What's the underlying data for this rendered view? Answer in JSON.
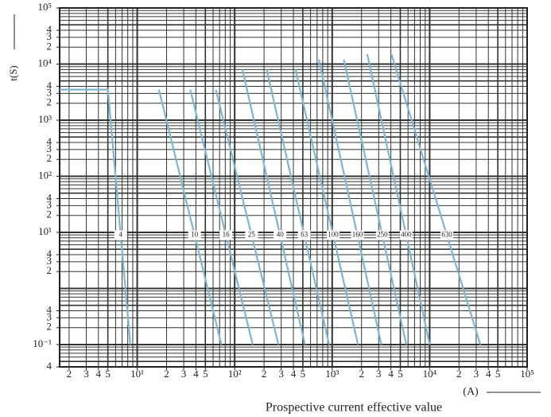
{
  "chart_data": {
    "type": "line",
    "y_label": "t(S)",
    "x_label": "(A)",
    "subtitle": "Prospective current effective value",
    "x_scale": "log",
    "y_scale": "log",
    "grid": true,
    "xlim": [
      1.6,
      100000
    ],
    "ylim": [
      0.04,
      100000
    ],
    "xticks": [
      2,
      3,
      4,
      5,
      {
        "value": 10,
        "label": "10¹"
      },
      {
        "value": 20,
        "label": "2"
      },
      {
        "value": 30,
        "label": "3"
      },
      {
        "value": 40,
        "label": "4"
      },
      {
        "value": 50,
        "label": "5"
      },
      {
        "value": 100,
        "label": "10²"
      },
      {
        "value": 200,
        "label": "2"
      },
      {
        "value": 300,
        "label": "3"
      },
      {
        "value": 400,
        "label": "4"
      },
      {
        "value": 500,
        "label": "5"
      },
      {
        "value": 1000,
        "label": "10³"
      },
      {
        "value": 2000,
        "label": "2"
      },
      {
        "value": 3000,
        "label": "3"
      },
      {
        "value": 4000,
        "label": "4"
      },
      {
        "value": 5000,
        "label": "5"
      },
      {
        "value": 10000,
        "label": "10⁴"
      },
      {
        "value": 20000,
        "label": "2"
      },
      {
        "value": 30000,
        "label": "3"
      },
      {
        "value": 40000,
        "label": "4"
      },
      {
        "value": 50000,
        "label": "5"
      },
      {
        "value": 100000,
        "label": "10⁵"
      }
    ],
    "yticks": [
      {
        "value": 100000,
        "label": "10⁵"
      },
      {
        "value": 40000,
        "label": "4"
      },
      {
        "value": 30000,
        "label": "3"
      },
      {
        "value": 20000,
        "label": "2"
      },
      {
        "value": 10000,
        "label": "10⁴"
      },
      {
        "value": 4000,
        "label": "4"
      },
      {
        "value": 3000,
        "label": "3"
      },
      {
        "value": 2000,
        "label": "2"
      },
      {
        "value": 1000,
        "label": "10³"
      },
      {
        "value": 400,
        "label": "4"
      },
      {
        "value": 300,
        "label": "3"
      },
      {
        "value": 200,
        "label": "2"
      },
      {
        "value": 100,
        "label": "10²"
      },
      {
        "value": 40,
        "label": "4"
      },
      {
        "value": 30,
        "label": "3"
      },
      {
        "value": 20,
        "label": "2"
      },
      {
        "value": 10,
        "label": "10¹"
      },
      4,
      3,
      2,
      {
        "value": 0.4,
        "label": "4"
      },
      {
        "value": 0.3,
        "label": "3"
      },
      {
        "value": 0.2,
        "label": "2"
      },
      {
        "value": 0.1,
        "label": "10⁻¹"
      },
      {
        "value": 0.04,
        "label": "4"
      }
    ],
    "series": [
      {
        "name": "4",
        "color": "#7fb4d6",
        "x": [
          1.6,
          5,
          8.5
        ],
        "values": [
          3500,
          3500,
          0.1
        ]
      },
      {
        "name": "10",
        "color": "#7fb4d6",
        "x": [
          16.7,
          73
        ],
        "values": [
          3500,
          0.1
        ]
      },
      {
        "name": "16",
        "color": "#7fb4d6",
        "x": [
          35,
          153
        ],
        "values": [
          3500,
          0.1
        ]
      },
      {
        "name": "25",
        "color": "#7fb4d6",
        "x": [
          64,
          281
        ],
        "values": [
          3500,
          0.1
        ]
      },
      {
        "name": "40",
        "color": "#7fb4d6",
        "x": [
          120,
          525
        ],
        "values": [
          8000,
          0.1
        ]
      },
      {
        "name": "63",
        "color": "#7fb4d6",
        "x": [
          213,
          929
        ],
        "values": [
          8000,
          0.1
        ]
      },
      {
        "name": "100",
        "color": "#7fb4d6",
        "x": [
          421,
          1837
        ],
        "values": [
          8000,
          0.1
        ]
      },
      {
        "name": "160",
        "color": "#7fb4d6",
        "x": [
          731,
          3192
        ],
        "values": [
          12000,
          0.1
        ]
      },
      {
        "name": "250",
        "color": "#7fb4d6",
        "x": [
          1318,
          5754
        ],
        "values": [
          12000,
          0.1
        ]
      },
      {
        "name": "400",
        "color": "#7fb4d6",
        "x": [
          2291,
          10000
        ],
        "values": [
          15000,
          0.1
        ]
      },
      {
        "name": "630",
        "color": "#7fb4d6",
        "x": [
          4055,
          33113
        ],
        "values": [
          15000,
          0.1
        ]
      }
    ]
  }
}
